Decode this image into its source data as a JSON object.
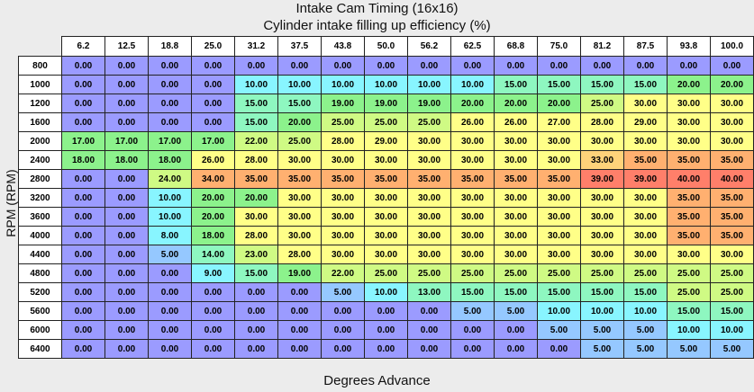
{
  "title": "Intake Cam Timing (16x16)",
  "subtitle": "Cylinder intake filling up efficiency (%)",
  "x_axis_label": "Degrees Advance",
  "y_axis_label": "RPM (RPM)",
  "columns": [
    "6.2",
    "12.5",
    "18.8",
    "25.0",
    "31.2",
    "37.5",
    "43.8",
    "50.0",
    "56.2",
    "62.5",
    "68.8",
    "75.0",
    "81.2",
    "87.5",
    "93.8",
    "100.0"
  ],
  "rows": [
    {
      "rpm": "800",
      "values": [
        "0.00",
        "0.00",
        "0.00",
        "0.00",
        "0.00",
        "0.00",
        "0.00",
        "0.00",
        "0.00",
        "0.00",
        "0.00",
        "0.00",
        "0.00",
        "0.00",
        "0.00",
        "0.00"
      ]
    },
    {
      "rpm": "1000",
      "values": [
        "0.00",
        "0.00",
        "0.00",
        "0.00",
        "10.00",
        "10.00",
        "10.00",
        "10.00",
        "10.00",
        "10.00",
        "15.00",
        "15.00",
        "15.00",
        "15.00",
        "20.00",
        "20.00"
      ]
    },
    {
      "rpm": "1200",
      "values": [
        "0.00",
        "0.00",
        "0.00",
        "0.00",
        "15.00",
        "15.00",
        "19.00",
        "19.00",
        "19.00",
        "20.00",
        "20.00",
        "20.00",
        "25.00",
        "30.00",
        "30.00",
        "30.00"
      ]
    },
    {
      "rpm": "1600",
      "values": [
        "0.00",
        "0.00",
        "0.00",
        "0.00",
        "15.00",
        "20.00",
        "25.00",
        "25.00",
        "25.00",
        "26.00",
        "26.00",
        "27.00",
        "28.00",
        "29.00",
        "30.00",
        "30.00"
      ]
    },
    {
      "rpm": "2000",
      "values": [
        "17.00",
        "17.00",
        "17.00",
        "17.00",
        "22.00",
        "25.00",
        "28.00",
        "29.00",
        "30.00",
        "30.00",
        "30.00",
        "30.00",
        "30.00",
        "30.00",
        "30.00",
        "30.00"
      ]
    },
    {
      "rpm": "2400",
      "values": [
        "18.00",
        "18.00",
        "18.00",
        "26.00",
        "28.00",
        "30.00",
        "30.00",
        "30.00",
        "30.00",
        "30.00",
        "30.00",
        "30.00",
        "33.00",
        "35.00",
        "35.00",
        "35.00"
      ]
    },
    {
      "rpm": "2800",
      "values": [
        "0.00",
        "0.00",
        "24.00",
        "34.00",
        "35.00",
        "35.00",
        "35.00",
        "35.00",
        "35.00",
        "35.00",
        "35.00",
        "35.00",
        "39.00",
        "39.00",
        "40.00",
        "40.00"
      ]
    },
    {
      "rpm": "3200",
      "values": [
        "0.00",
        "0.00",
        "10.00",
        "20.00",
        "20.00",
        "30.00",
        "30.00",
        "30.00",
        "30.00",
        "30.00",
        "30.00",
        "30.00",
        "30.00",
        "30.00",
        "35.00",
        "35.00"
      ]
    },
    {
      "rpm": "3600",
      "values": [
        "0.00",
        "0.00",
        "10.00",
        "20.00",
        "30.00",
        "30.00",
        "30.00",
        "30.00",
        "30.00",
        "30.00",
        "30.00",
        "30.00",
        "30.00",
        "30.00",
        "35.00",
        "35.00"
      ]
    },
    {
      "rpm": "4000",
      "values": [
        "0.00",
        "0.00",
        "8.00",
        "18.00",
        "28.00",
        "30.00",
        "30.00",
        "30.00",
        "30.00",
        "30.00",
        "30.00",
        "30.00",
        "30.00",
        "30.00",
        "35.00",
        "35.00"
      ]
    },
    {
      "rpm": "4400",
      "values": [
        "0.00",
        "0.00",
        "5.00",
        "14.00",
        "23.00",
        "28.00",
        "30.00",
        "30.00",
        "30.00",
        "30.00",
        "30.00",
        "30.00",
        "30.00",
        "30.00",
        "30.00",
        "30.00"
      ]
    },
    {
      "rpm": "4800",
      "values": [
        "0.00",
        "0.00",
        "0.00",
        "9.00",
        "15.00",
        "19.00",
        "22.00",
        "25.00",
        "25.00",
        "25.00",
        "25.00",
        "25.00",
        "25.00",
        "25.00",
        "25.00",
        "25.00"
      ]
    },
    {
      "rpm": "5200",
      "values": [
        "0.00",
        "0.00",
        "0.00",
        "0.00",
        "0.00",
        "0.00",
        "5.00",
        "10.00",
        "13.00",
        "15.00",
        "15.00",
        "15.00",
        "15.00",
        "15.00",
        "25.00",
        "25.00"
      ]
    },
    {
      "rpm": "5600",
      "values": [
        "0.00",
        "0.00",
        "0.00",
        "0.00",
        "0.00",
        "0.00",
        "0.00",
        "0.00",
        "0.00",
        "5.00",
        "5.00",
        "10.00",
        "10.00",
        "10.00",
        "15.00",
        "15.00"
      ]
    },
    {
      "rpm": "6000",
      "values": [
        "0.00",
        "0.00",
        "0.00",
        "0.00",
        "0.00",
        "0.00",
        "0.00",
        "0.00",
        "0.00",
        "0.00",
        "0.00",
        "5.00",
        "5.00",
        "5.00",
        "10.00",
        "10.00"
      ]
    },
    {
      "rpm": "6400",
      "values": [
        "0.00",
        "0.00",
        "0.00",
        "0.00",
        "0.00",
        "0.00",
        "0.00",
        "0.00",
        "0.00",
        "0.00",
        "0.00",
        "0.00",
        "5.00",
        "5.00",
        "5.00",
        "5.00"
      ]
    }
  ],
  "colors": {
    "c0": "#9b9bff",
    "c5": "#95c8ff",
    "c10": "#88f5ff",
    "c15": "#8ef7c0",
    "c20": "#8cf28c",
    "c25": "#cffa84",
    "c30": "#ffff88",
    "c33": "#ffd27a",
    "c35": "#ffb070",
    "c39": "#ff7f6a"
  }
}
